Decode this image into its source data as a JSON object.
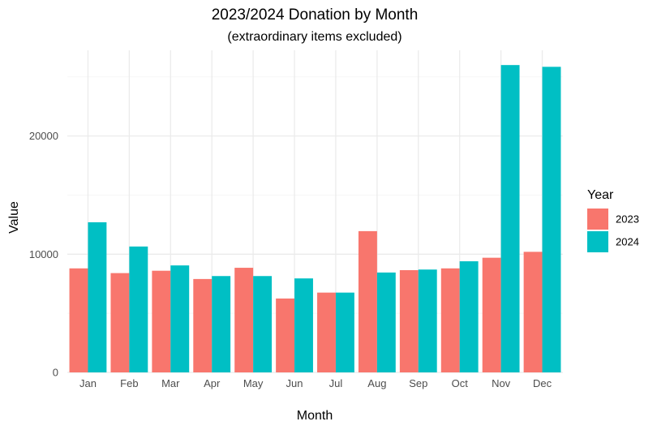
{
  "chart_data": {
    "type": "bar",
    "title": "2023/2024 Donation by Month",
    "subtitle": "(extraordinary items excluded)",
    "xlabel": "Month",
    "ylabel": "Value",
    "categories": [
      "Jan",
      "Feb",
      "Mar",
      "Apr",
      "May",
      "Jun",
      "Jul",
      "Aug",
      "Sep",
      "Oct",
      "Nov",
      "Dec"
    ],
    "series": [
      {
        "name": "2023",
        "color": "#F8766D",
        "values": [
          8800,
          8400,
          8600,
          7900,
          8850,
          6250,
          6750,
          11950,
          8650,
          8800,
          9700,
          10200
        ]
      },
      {
        "name": "2024",
        "color": "#00BFC4",
        "values": [
          12700,
          10650,
          9050,
          8150,
          8150,
          7950,
          6750,
          8450,
          8700,
          9400,
          26000,
          25850
        ]
      }
    ],
    "ylim": [
      0,
      27000
    ],
    "yticks": [
      0,
      10000,
      20000
    ],
    "ytick_labels": [
      "0",
      "10000",
      "20000"
    ],
    "grid": true,
    "legend": {
      "title": "Year",
      "position": "right"
    }
  }
}
